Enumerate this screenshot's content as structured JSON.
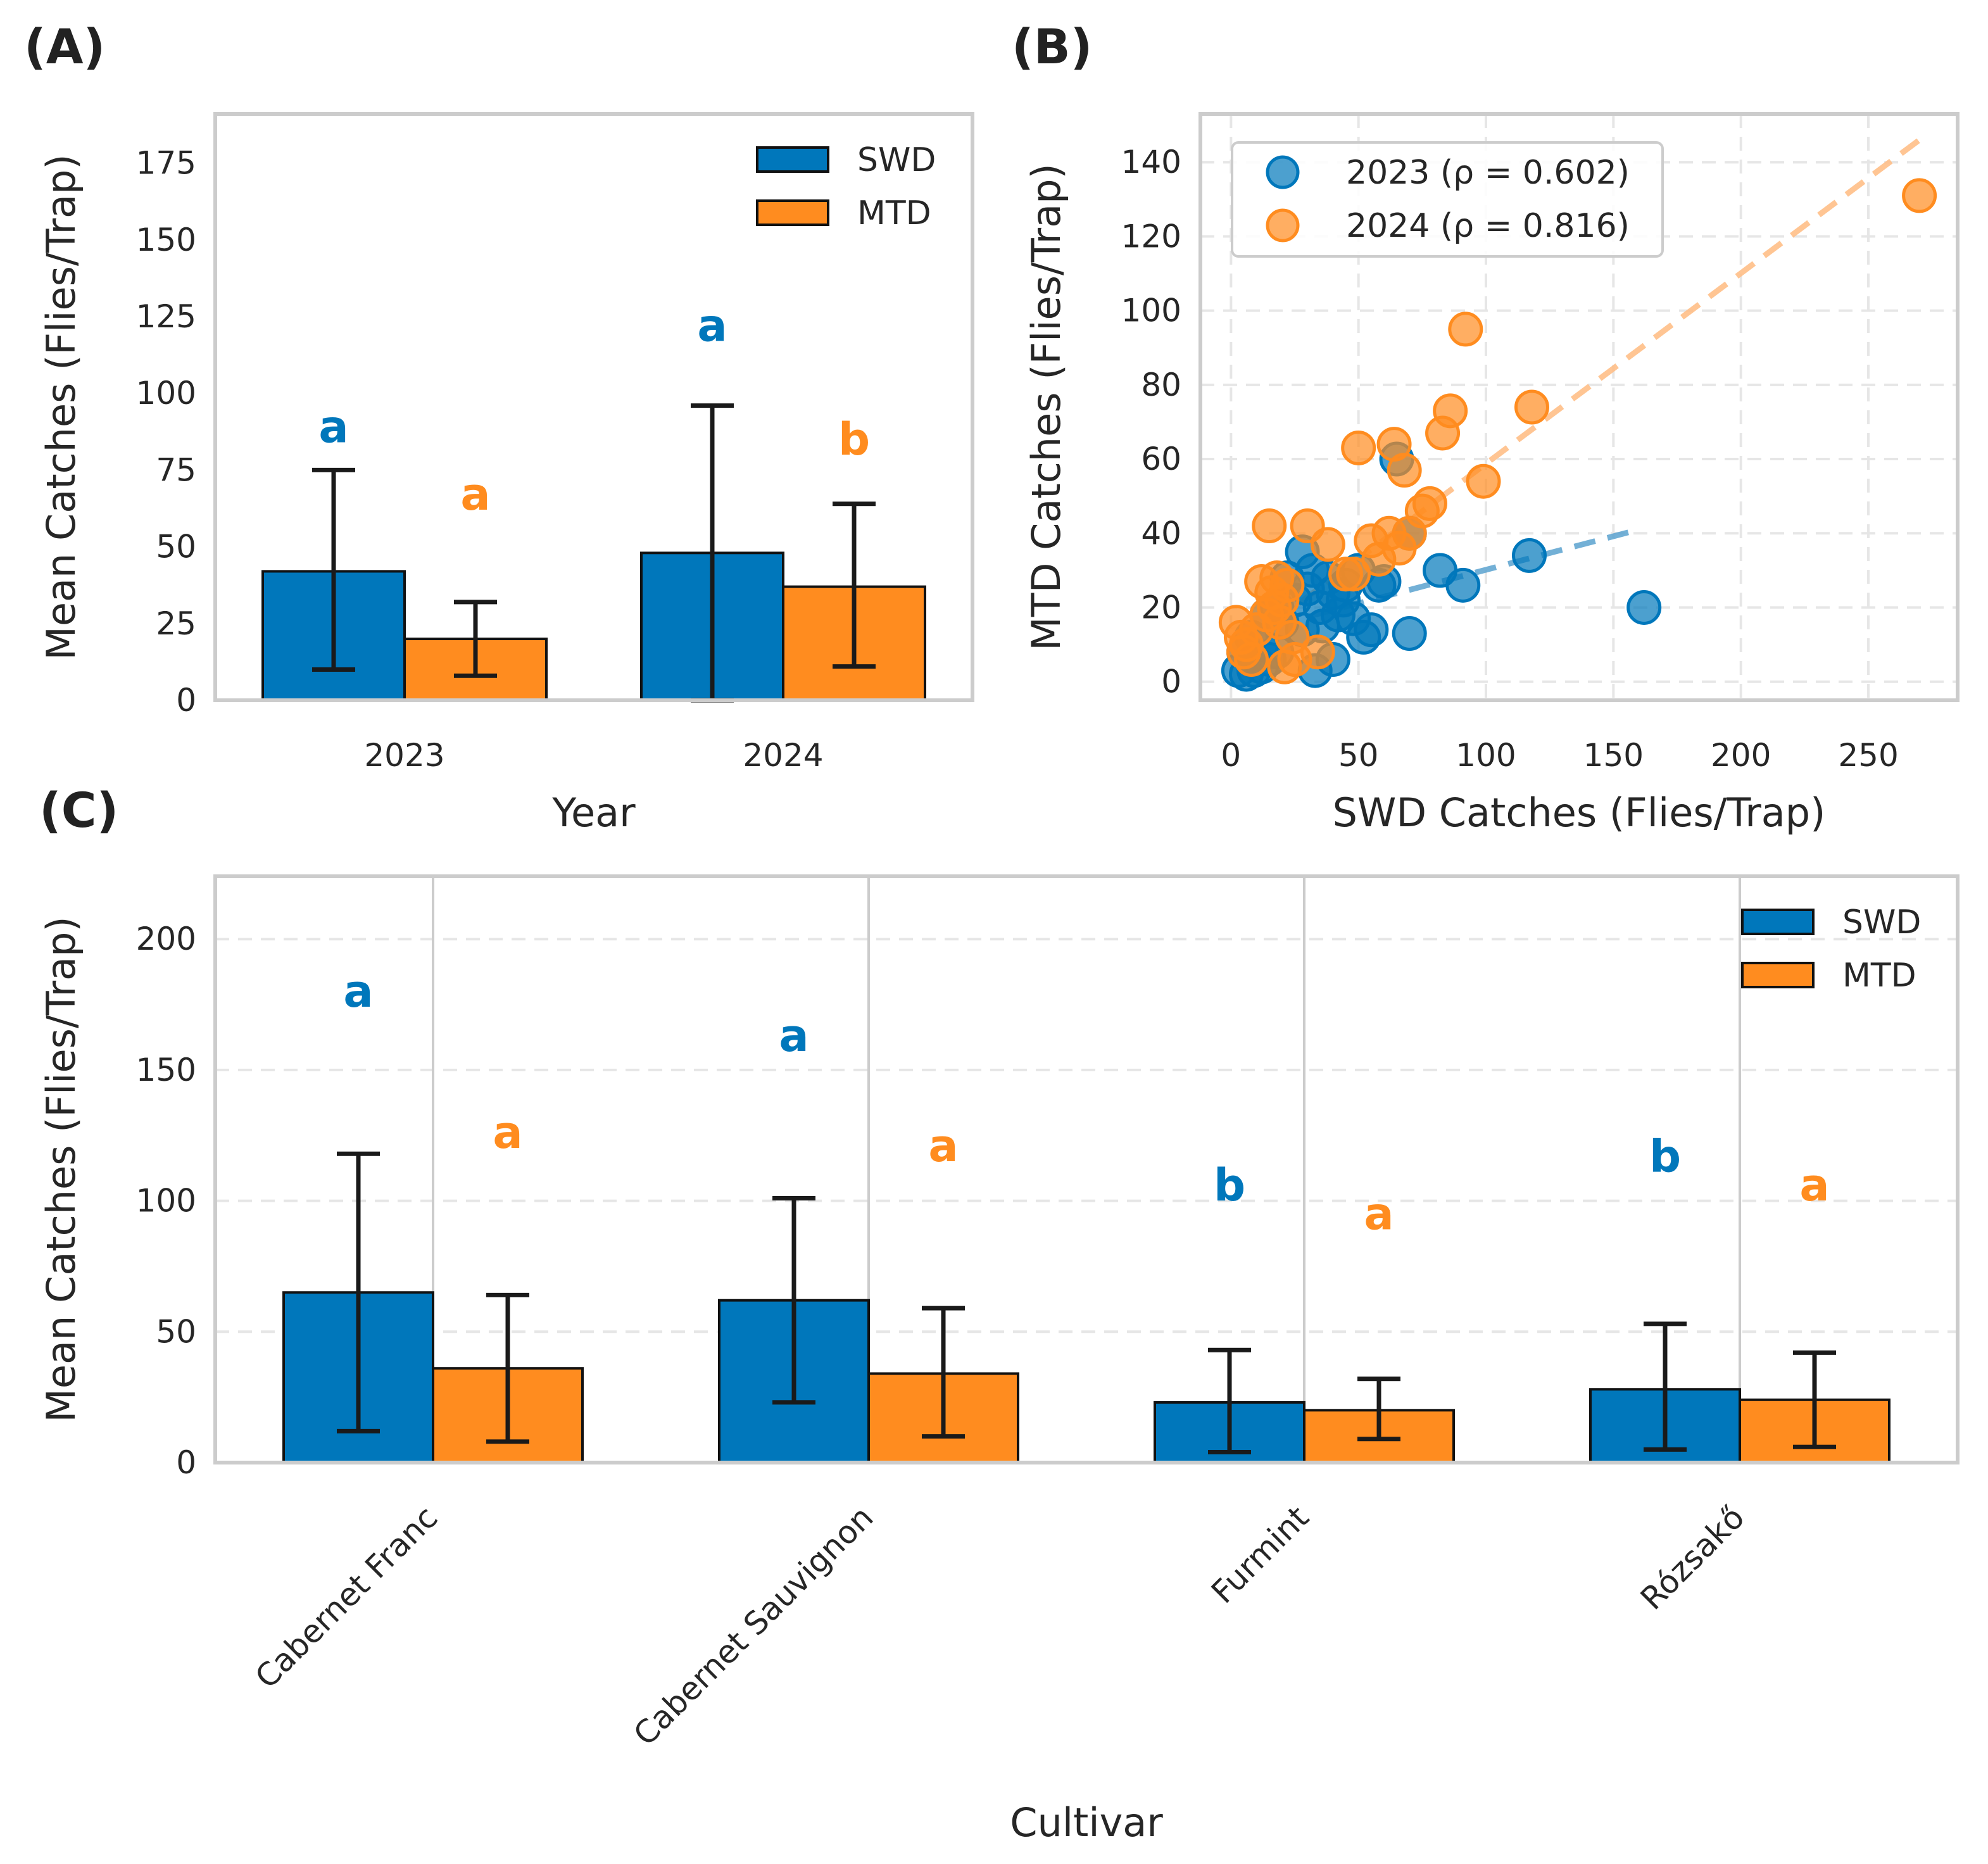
{
  "colors": {
    "swd": "#0077bb",
    "mtd": "#ff8c1f",
    "swd_line": "#5ba3d0",
    "mtd_line": "#ffbf88"
  },
  "chart_data": [
    {
      "panel": "(A)",
      "type": "bar",
      "xlabel": "Year",
      "ylabel": "Mean Catches (Flies/Trap)",
      "categories": [
        "2023",
        "2024"
      ],
      "ylim": [
        0,
        191
      ],
      "yticks": [
        0,
        25,
        50,
        75,
        100,
        125,
        150,
        175
      ],
      "grid": false,
      "legend_position": "top-right",
      "series": [
        {
          "name": "SWD",
          "values": [
            42,
            48
          ],
          "err_low": [
            10,
            0
          ],
          "err_high": [
            75,
            96
          ],
          "letters": [
            "a",
            "a"
          ],
          "letter_y": [
            89,
            122
          ]
        },
        {
          "name": "MTD",
          "values": [
            20,
            37
          ],
          "err_low": [
            8,
            11
          ],
          "err_high": [
            32,
            64
          ],
          "letters": [
            "a",
            "b"
          ],
          "letter_y": [
            67,
            85
          ]
        }
      ]
    },
    {
      "panel": "(B)",
      "type": "scatter",
      "xlabel": "SWD Catches (Flies/Trap)",
      "ylabel": "MTD Catches (Flies/Trap)",
      "xlim": [
        -12,
        285
      ],
      "ylim": [
        -5,
        153
      ],
      "xticks": [
        0,
        50,
        100,
        150,
        200,
        250
      ],
      "yticks": [
        0,
        20,
        40,
        60,
        80,
        100,
        120,
        140
      ],
      "grid": true,
      "legend_position": "top-left",
      "series": [
        {
          "name": "2023 (ρ = 0.602)",
          "points": [
            [
              3,
              3
            ],
            [
              6,
              2
            ],
            [
              9,
              3
            ],
            [
              12,
              4
            ],
            [
              5,
              8
            ],
            [
              15,
              6
            ],
            [
              8,
              12
            ],
            [
              14,
              18
            ],
            [
              18,
              20
            ],
            [
              20,
              16
            ],
            [
              25,
              22
            ],
            [
              28,
              35
            ],
            [
              30,
              25
            ],
            [
              32,
              30
            ],
            [
              35,
              20
            ],
            [
              38,
              28
            ],
            [
              40,
              24
            ],
            [
              42,
              18
            ],
            [
              45,
              26
            ],
            [
              48,
              17
            ],
            [
              50,
              30
            ],
            [
              52,
              12
            ],
            [
              55,
              14
            ],
            [
              58,
              26
            ],
            [
              60,
              27
            ],
            [
              70,
              13
            ],
            [
              33,
              3
            ],
            [
              40,
              6
            ],
            [
              22,
              28
            ],
            [
              28,
              14
            ],
            [
              65,
              60
            ],
            [
              70,
              40
            ],
            [
              82,
              30
            ],
            [
              91,
              26
            ],
            [
              117,
              34
            ],
            [
              162,
              20
            ],
            [
              36,
              15
            ],
            [
              44,
              22
            ],
            [
              12,
              10
            ],
            [
              18,
              8
            ]
          ],
          "trend": [
            [
              5,
              13
            ],
            [
              160,
              41
            ]
          ]
        },
        {
          "name": "2024 (ρ = 0.816)",
          "points": [
            [
              2,
              16
            ],
            [
              4,
              12
            ],
            [
              5,
              8
            ],
            [
              6,
              10
            ],
            [
              10,
              14
            ],
            [
              12,
              27
            ],
            [
              15,
              42
            ],
            [
              16,
              24
            ],
            [
              17,
              20
            ],
            [
              18,
              28
            ],
            [
              19,
              16
            ],
            [
              20,
              22
            ],
            [
              21,
              4
            ],
            [
              22,
              26
            ],
            [
              24,
              12
            ],
            [
              25,
              6
            ],
            [
              30,
              42
            ],
            [
              34,
              8
            ],
            [
              38,
              37
            ],
            [
              45,
              29
            ],
            [
              48,
              29
            ],
            [
              50,
              63
            ],
            [
              55,
              38
            ],
            [
              58,
              33
            ],
            [
              62,
              40
            ],
            [
              64,
              64
            ],
            [
              66,
              36
            ],
            [
              68,
              57
            ],
            [
              70,
              40
            ],
            [
              75,
              46
            ],
            [
              78,
              48
            ],
            [
              83,
              67
            ],
            [
              86,
              73
            ],
            [
              92,
              95
            ],
            [
              99,
              54
            ],
            [
              118,
              74
            ],
            [
              270,
              131
            ],
            [
              14,
              18
            ],
            [
              8,
              6
            ]
          ],
          "trend": [
            [
              5,
              10
            ],
            [
              270,
              146
            ]
          ]
        }
      ]
    },
    {
      "panel": "(C)",
      "type": "bar",
      "xlabel": "Cultivar",
      "ylabel": "Mean Catches (Flies/Trap)",
      "categories": [
        "Cabernet Franc",
        "Cabernet Sauvignon",
        "Furmint",
        "Rózsakő"
      ],
      "ylim": [
        0,
        224
      ],
      "yticks": [
        0,
        50,
        100,
        150,
        200
      ],
      "grid": true,
      "legend_position": "top-right",
      "series": [
        {
          "name": "SWD",
          "values": [
            65,
            62,
            23,
            28
          ],
          "err_low": [
            12,
            23,
            4,
            5
          ],
          "err_high": [
            118,
            101,
            43,
            53
          ],
          "letters": [
            "a",
            "a",
            "b",
            "b"
          ],
          "letter_y": [
            180,
            163,
            106,
            117
          ]
        },
        {
          "name": "MTD",
          "values": [
            36,
            34,
            20,
            24
          ],
          "err_low": [
            8,
            10,
            9,
            6
          ],
          "err_high": [
            64,
            59,
            32,
            42
          ],
          "letters": [
            "a",
            "a",
            "a",
            "a"
          ],
          "letter_y": [
            126,
            121,
            95,
            106
          ]
        }
      ]
    }
  ]
}
